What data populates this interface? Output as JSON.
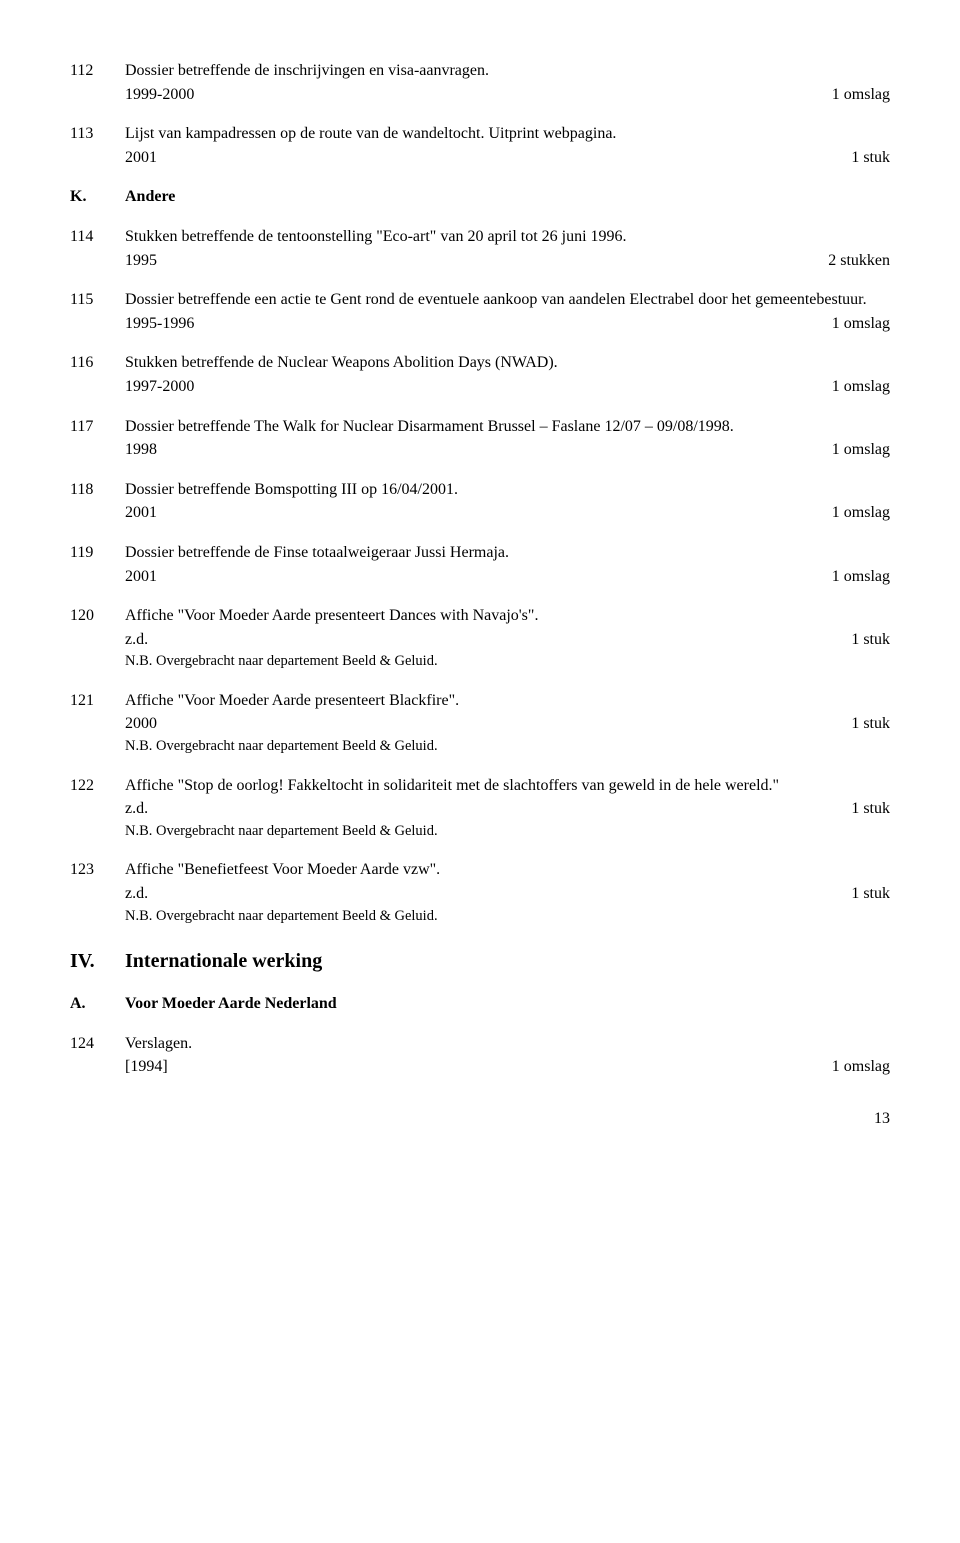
{
  "entries": [
    {
      "num": "112",
      "desc": "Dossier betreffende de inschrijvingen en visa-aanvragen.",
      "date": "1999-2000",
      "extent": "1 omslag"
    },
    {
      "num": "113",
      "desc": "Lijst van kampadressen op de route van de wandeltocht. Uitprint webpagina.",
      "date": "2001",
      "extent": "1 stuk"
    }
  ],
  "sectionK": {
    "letter": "K.",
    "title": "Andere"
  },
  "entries2": [
    {
      "num": "114",
      "desc": "Stukken betreffende de tentoonstelling \"Eco-art\" van 20 april tot 26 juni 1996.",
      "date": "1995",
      "extent": "2 stukken"
    },
    {
      "num": "115",
      "desc": "Dossier betreffende een actie te Gent rond de eventuele aankoop van aandelen Electrabel door het gemeentebestuur.",
      "date": "1995-1996",
      "extent": "1 omslag"
    },
    {
      "num": "116",
      "desc": "Stukken betreffende de Nuclear Weapons Abolition Days (NWAD).",
      "date": "1997-2000",
      "extent": "1 omslag"
    },
    {
      "num": "117",
      "desc": "Dossier betreffende The Walk for Nuclear Disarmament Brussel – Faslane 12/07 – 09/08/1998.",
      "date": "1998",
      "extent": "1 omslag"
    },
    {
      "num": "118",
      "desc": "Dossier betreffende Bomspotting III op 16/04/2001.",
      "date": "2001",
      "extent": "1 omslag"
    },
    {
      "num": "119",
      "desc": "Dossier betreffende de Finse totaalweigeraar Jussi Hermaja.",
      "date": "2001",
      "extent": "1 omslag"
    },
    {
      "num": "120",
      "desc": "Affiche \"Voor Moeder Aarde presenteert Dances with Navajo's\".",
      "date": "z.d.",
      "extent": "1 stuk",
      "note": "N.B. Overgebracht naar departement Beeld & Geluid."
    },
    {
      "num": "121",
      "desc": "Affiche \"Voor Moeder Aarde presenteert Blackfire\".",
      "date": "2000",
      "extent": "1 stuk",
      "note": "N.B. Overgebracht naar departement Beeld & Geluid."
    },
    {
      "num": "122",
      "desc": "Affiche \"Stop de oorlog! Fakkeltocht in solidariteit met de slachtoffers van geweld in de hele wereld.\"",
      "date": "z.d.",
      "extent": "1 stuk",
      "note": "N.B. Overgebracht naar departement Beeld & Geluid."
    },
    {
      "num": "123",
      "desc": "Affiche \"Benefietfeest Voor Moeder Aarde vzw\".",
      "date": "z.d.",
      "extent": "1 stuk",
      "note": "N.B. Overgebracht naar departement Beeld & Geluid."
    }
  ],
  "heading2": {
    "num": "IV.",
    "title": "Internationale werking"
  },
  "sectionA": {
    "letter": "A.",
    "title": "Voor Moeder Aarde Nederland"
  },
  "entries3": [
    {
      "num": "124",
      "desc": "Verslagen.",
      "date": "[1994]",
      "extent": "1 omslag"
    }
  ],
  "pageNumber": "13"
}
